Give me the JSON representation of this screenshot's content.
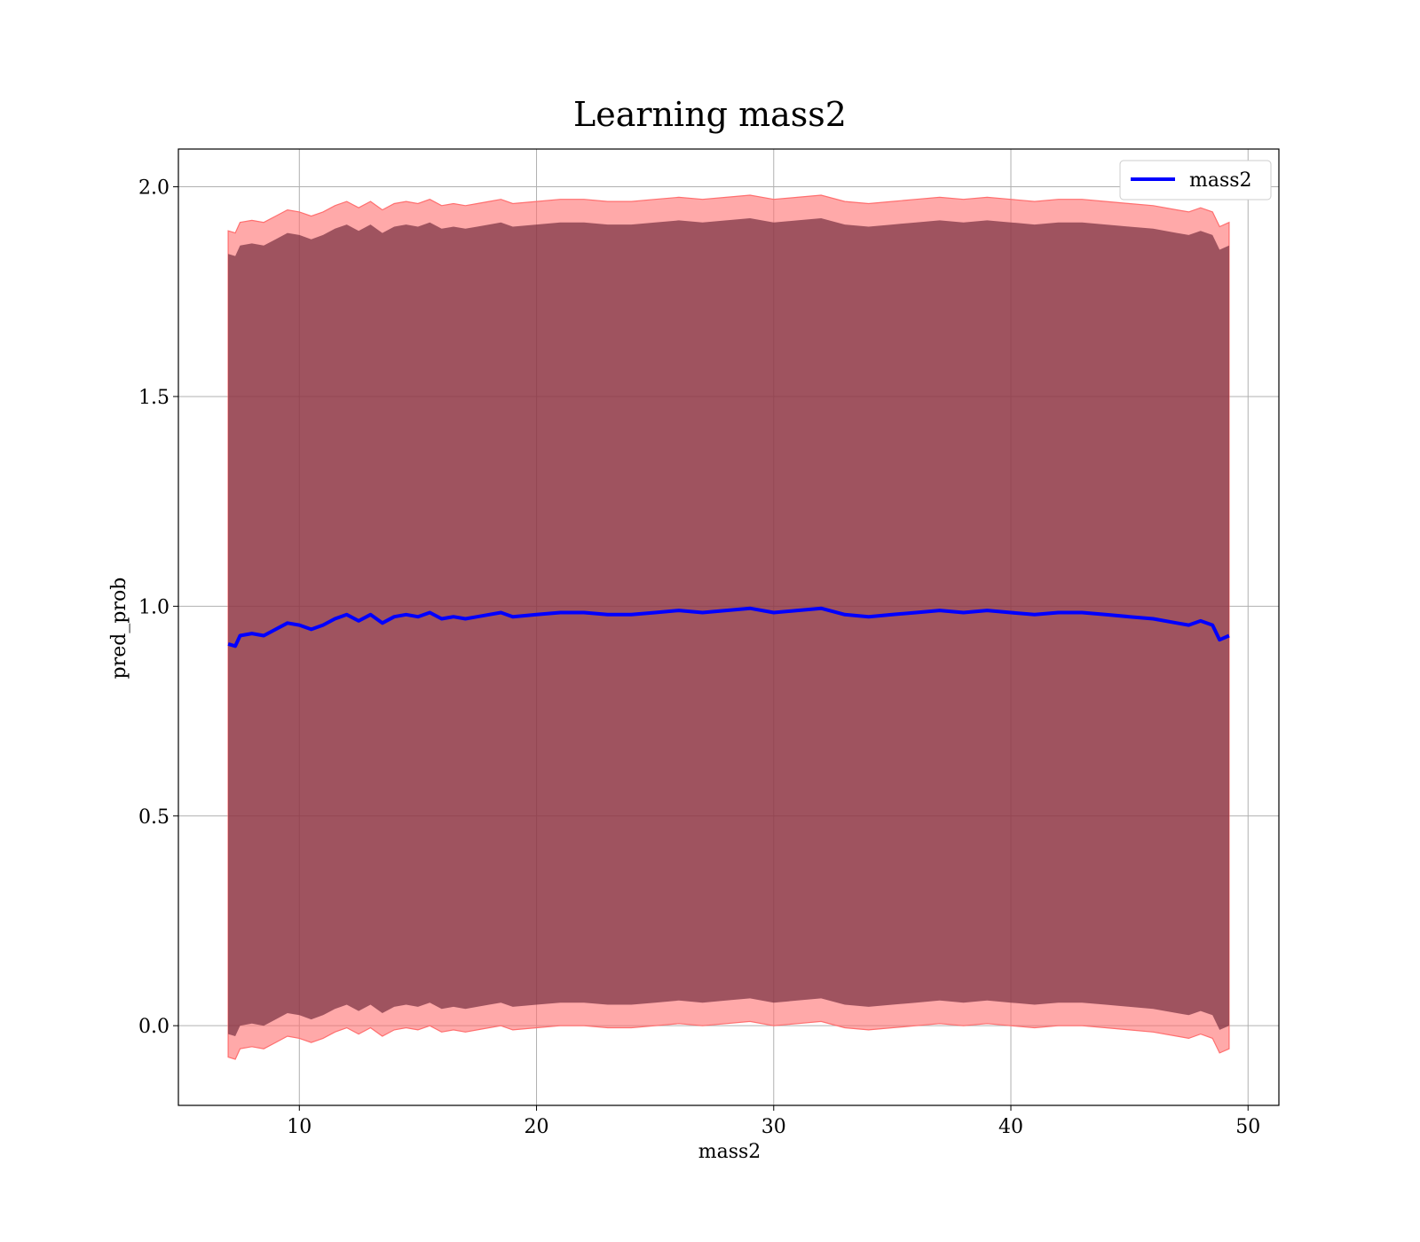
{
  "chart_data": {
    "type": "line",
    "title": "Learning mass2",
    "xlabel": "mass2",
    "ylabel": "pred_prob",
    "xlim": [
      4.9,
      51.3
    ],
    "ylim": [
      -0.19,
      2.09
    ],
    "xticks": [
      10,
      20,
      30,
      40,
      50
    ],
    "yticks": [
      0.0,
      0.5,
      1.0,
      1.5,
      2.0
    ],
    "xtick_labels": [
      "10",
      "20",
      "30",
      "40",
      50
    ],
    "ytick_labels": [
      "0.0",
      "0.5",
      "1.0",
      "1.5",
      "2.0"
    ],
    "grid": true,
    "legend": {
      "position": "top-right",
      "entries": [
        "mass2"
      ]
    },
    "colors": {
      "line": "#0000ff",
      "inner_band": "#6b2538",
      "outer_band": "#ff6f6f",
      "grid": "#b0b0b0"
    },
    "series": [
      {
        "name": "mass2",
        "x": [
          7.0,
          7.3,
          7.5,
          8.0,
          8.5,
          9.0,
          9.5,
          10.0,
          10.5,
          11.0,
          11.5,
          12.0,
          12.5,
          13.0,
          13.5,
          14.0,
          14.5,
          15.0,
          15.5,
          16.0,
          16.5,
          17.0,
          17.5,
          18.0,
          18.5,
          19.0,
          20.0,
          21.0,
          22.0,
          23.0,
          24.0,
          25.0,
          26.0,
          27.0,
          28.0,
          29.0,
          30.0,
          31.0,
          32.0,
          33.0,
          34.0,
          35.0,
          36.0,
          37.0,
          38.0,
          39.0,
          40.0,
          41.0,
          42.0,
          43.0,
          44.0,
          45.0,
          46.0,
          47.0,
          47.5,
          48.0,
          48.5,
          48.8,
          49.2
        ],
        "y": [
          0.91,
          0.905,
          0.93,
          0.935,
          0.93,
          0.945,
          0.96,
          0.955,
          0.945,
          0.955,
          0.97,
          0.98,
          0.965,
          0.98,
          0.96,
          0.975,
          0.98,
          0.975,
          0.985,
          0.97,
          0.975,
          0.97,
          0.975,
          0.98,
          0.985,
          0.975,
          0.98,
          0.985,
          0.985,
          0.98,
          0.98,
          0.985,
          0.99,
          0.985,
          0.99,
          0.995,
          0.985,
          0.99,
          0.995,
          0.98,
          0.975,
          0.98,
          0.985,
          0.99,
          0.985,
          0.99,
          0.985,
          0.98,
          0.985,
          0.985,
          0.98,
          0.975,
          0.97,
          0.96,
          0.955,
          0.965,
          0.955,
          0.92,
          0.93
        ],
        "inner_band_half_width": 0.93,
        "outer_band_half_width": 0.985
      }
    ]
  }
}
